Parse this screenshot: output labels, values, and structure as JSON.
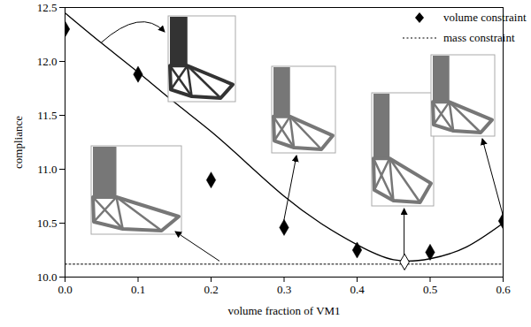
{
  "chart_data": {
    "type": "scatter",
    "x_label": "volume fraction of VM1",
    "y_label": "compliance",
    "xlim": [
      0,
      0.6
    ],
    "ylim": [
      10,
      12.5
    ],
    "xticks": [
      {
        "value": 0,
        "label": "0.0"
      },
      {
        "value": 0.1,
        "label": "0.1"
      },
      {
        "value": 0.2,
        "label": "0.2"
      },
      {
        "value": 0.3,
        "label": "0.3"
      },
      {
        "value": 0.4,
        "label": "0.4"
      },
      {
        "value": 0.5,
        "label": "0.5"
      },
      {
        "value": 0.6,
        "label": "0.6"
      }
    ],
    "yticks": [
      {
        "value": 10,
        "label": "10.0"
      },
      10.5,
      {
        "value": 11,
        "label": "11.0"
      },
      11.5,
      {
        "value": 12,
        "label": "12.0"
      },
      12.5
    ],
    "grid": false,
    "legend": "top-right",
    "series": [
      {
        "name": "volume constraint",
        "type": "scatter",
        "marker": "diamond",
        "color": "#000000",
        "x": [
          0,
          0.1,
          0.2,
          0.3,
          0.4,
          0.5,
          0.6
        ],
        "values": [
          12.3,
          11.88,
          10.9,
          10.46,
          10.25,
          10.23,
          10.52
        ]
      },
      {
        "name": "mass constraint",
        "type": "line",
        "line_style": "dotted",
        "color": "#000000",
        "x": [
          0,
          0.6
        ],
        "values": [
          10.12,
          10.12
        ]
      },
      {
        "type": "line",
        "line_style": "solid",
        "color": "#000000",
        "x": [
          0,
          0.05,
          0.1,
          0.15,
          0.2,
          0.25,
          0.3,
          0.35,
          0.4,
          0.45,
          0.5,
          0.55,
          0.6
        ],
        "values": [
          12.45,
          12.17,
          11.9,
          11.62,
          11.35,
          11.05,
          10.75,
          10.5,
          10.3,
          10.16,
          10.17,
          10.28,
          10.5
        ]
      },
      {
        "type": "scatter",
        "marker": "diamond_open",
        "color": "#000000",
        "x": [
          0.465
        ],
        "values": [
          10.14
        ]
      }
    ]
  }
}
